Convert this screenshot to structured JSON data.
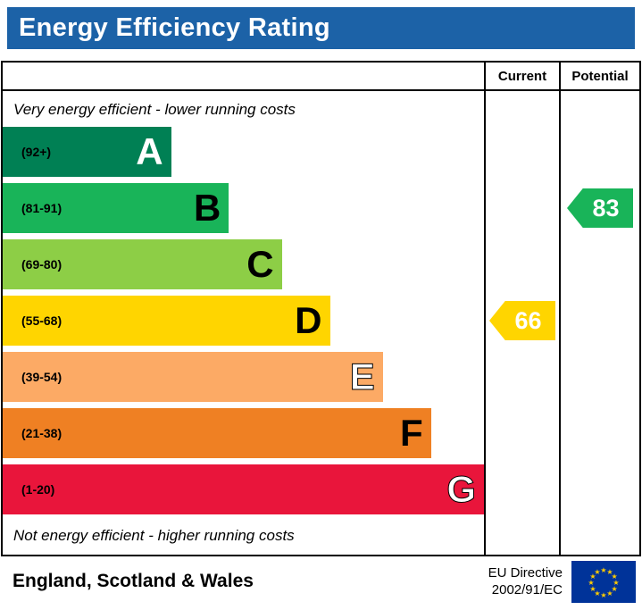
{
  "banner": {
    "title": "Energy Efficiency Rating",
    "bg": "#1c62a7"
  },
  "table": {
    "current_header": "Current",
    "potential_header": "Potential",
    "top_note": "Very energy efficient - lower running costs",
    "bottom_note": "Not energy efficient - higher running costs"
  },
  "bands": [
    {
      "letter": "A",
      "range": "(92+)",
      "color": "#008054",
      "width_pct": 35,
      "letter_color": "#ffffff",
      "letter_outline": ""
    },
    {
      "letter": "B",
      "range": "(81-91)",
      "color": "#19b459",
      "width_pct": 47,
      "letter_color": "#000000",
      "letter_outline": ""
    },
    {
      "letter": "C",
      "range": "(69-80)",
      "color": "#8dce46",
      "width_pct": 58,
      "letter_color": "#000000",
      "letter_outline": ""
    },
    {
      "letter": "D",
      "range": "(55-68)",
      "color": "#ffd500",
      "width_pct": 68,
      "letter_color": "#000000",
      "letter_outline": ""
    },
    {
      "letter": "E",
      "range": "(39-54)",
      "color": "#fcaa65",
      "width_pct": 79,
      "letter_color": "#ffffff",
      "letter_outline": "#000000"
    },
    {
      "letter": "F",
      "range": "(21-38)",
      "color": "#ef8023",
      "width_pct": 89,
      "letter_color": "#000000",
      "letter_outline": ""
    },
    {
      "letter": "G",
      "range": "(1-20)",
      "color": "#e9153b",
      "width_pct": 100,
      "letter_color": "#ffffff",
      "letter_outline": "#000000"
    }
  ],
  "ratings": {
    "current": {
      "value": "66",
      "color": "#ffd500",
      "band_index": 3
    },
    "potential": {
      "value": "83",
      "color": "#19b459",
      "band_index": 1
    }
  },
  "footer": {
    "region": "England, Scotland & Wales",
    "directive_line1": "EU Directive",
    "directive_line2": "2002/91/EC"
  },
  "chart_data": {
    "type": "bar",
    "orientation": "horizontal",
    "title": "Energy Efficiency Rating",
    "categories": [
      "A (92+)",
      "B (81-91)",
      "C (69-80)",
      "D (55-68)",
      "E (39-54)",
      "F (21-38)",
      "G (1-20)"
    ],
    "values": [
      35,
      47,
      58,
      68,
      79,
      89,
      100
    ],
    "colors": [
      "#008054",
      "#19b459",
      "#8dce46",
      "#ffd500",
      "#fcaa65",
      "#ef8023",
      "#e9153b"
    ],
    "annotations": [
      {
        "name": "Current",
        "value": 66,
        "band": "D",
        "color": "#ffd500"
      },
      {
        "name": "Potential",
        "value": 83,
        "band": "B",
        "color": "#19b459"
      }
    ],
    "top_label": "Very energy efficient - lower running costs",
    "bottom_label": "Not energy efficient - higher running costs",
    "footer_left": "England, Scotland & Wales",
    "footer_right": "EU Directive 2002/91/EC",
    "legend_position": "none",
    "grid": false
  }
}
